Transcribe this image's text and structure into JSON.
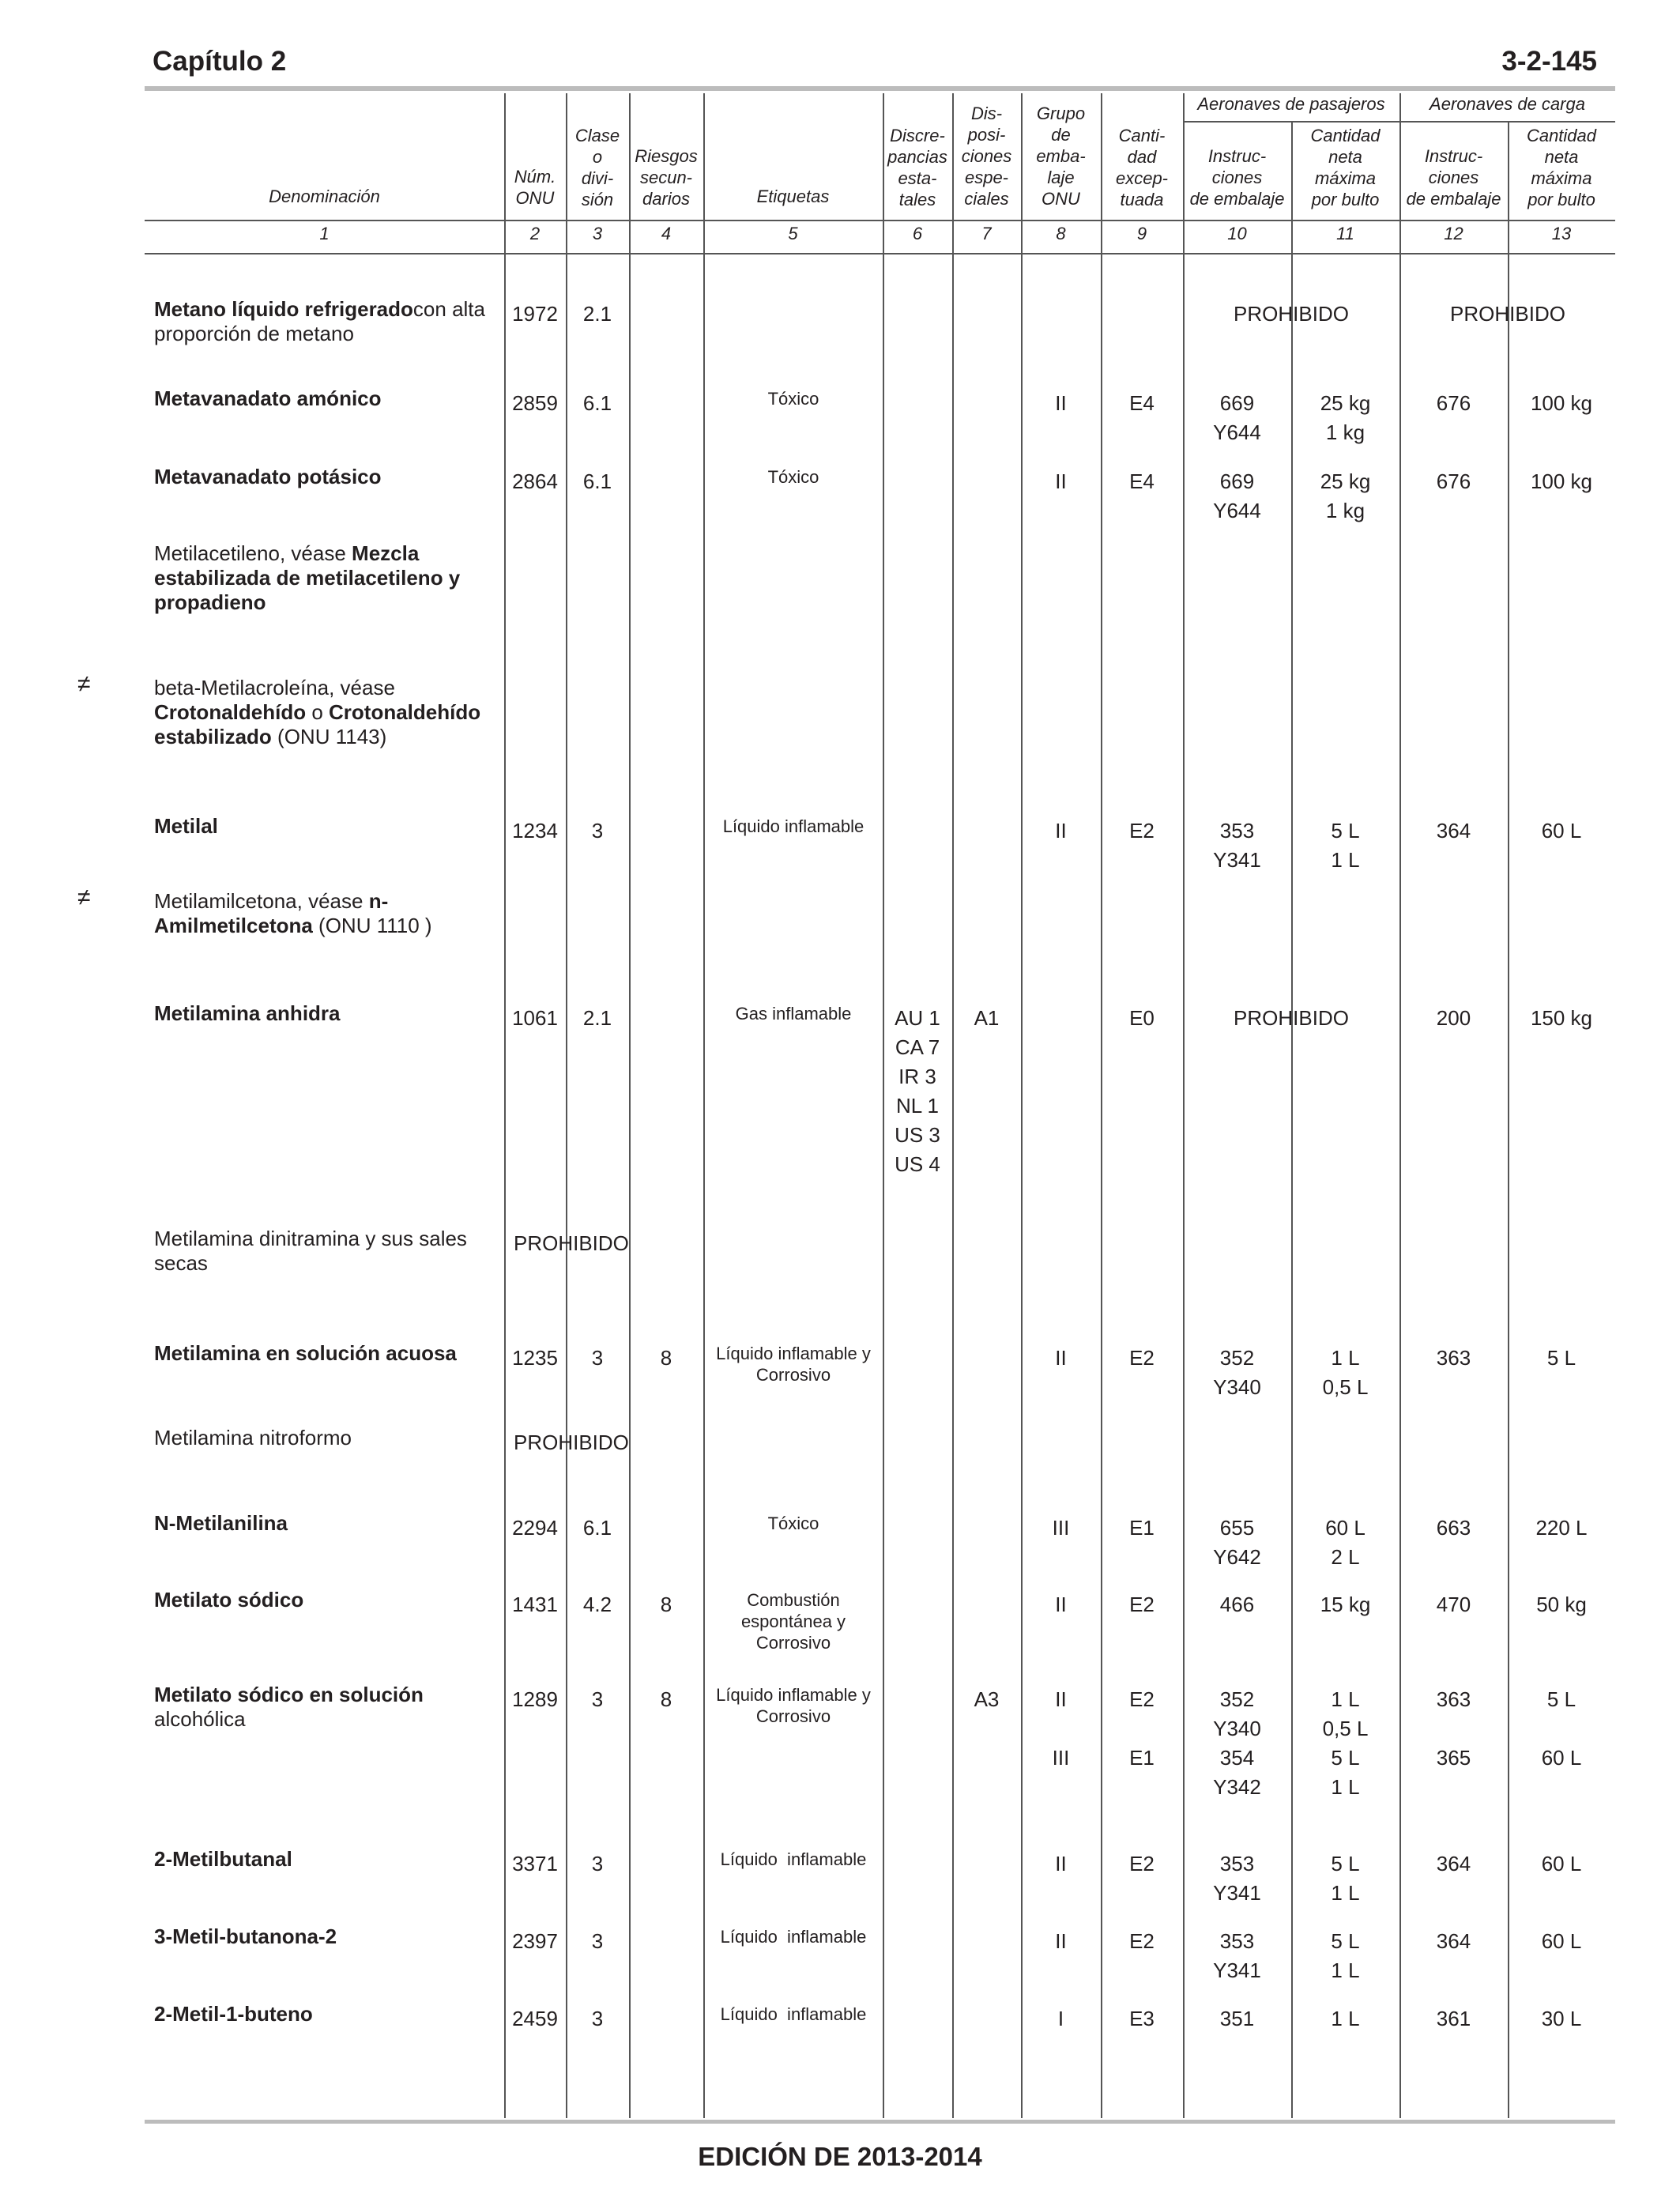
{
  "header": {
    "chapter": "Capítulo 2",
    "page": "3-2-145"
  },
  "columns": {
    "names": [
      "Denominación",
      "Núm.\nONU",
      "Clase\no\ndivi-\nsión",
      "Riesgos\nsecun-\ndarios",
      "Etiquetas",
      "Discre-\npancias\nesta-\ntales",
      "Dis-\nposi-\nciones\nespe-\nciales",
      "Grupo\nde\nemba-\nlaje\nONU",
      "Canti-\ndad\nexcep-\ntuada",
      "Instruc-\nciones\nde embalaje",
      "Cantidad\nneta\nmáxima\npor bulto",
      "Instruc-\nciones\nde embalaje",
      "Cantidad\nneta\nmáxima\npor bulto"
    ],
    "numbers": [
      "1",
      "2",
      "3",
      "4",
      "5",
      "6",
      "7",
      "8",
      "9",
      "10",
      "11",
      "12",
      "13"
    ],
    "group_passenger": "Aeronaves de pasajeros",
    "group_cargo": "Aeronaves de carga"
  },
  "entries": [
    {
      "name_parts": [
        {
          "b": "Metano líquido refrigerado"
        },
        {
          "t": "con alta proporción de metano"
        }
      ],
      "onu": "1972",
      "clase": "2.1",
      "pass_inst": "PROHIBIDO",
      "cargo_inst": "PROHIBIDO"
    },
    {
      "name_parts": [
        {
          "b": "Metavanadato amónico"
        }
      ],
      "onu": "2859",
      "clase": "6.1",
      "label": "Tóxico",
      "grupo": "II",
      "exc": "E4",
      "pass_inst": "669\nY644",
      "pass_qty": "25 kg\n1 kg",
      "cargo_inst": "676",
      "cargo_qty": "100 kg"
    },
    {
      "name_parts": [
        {
          "b": "Metavanadato potásico"
        }
      ],
      "onu": "2864",
      "clase": "6.1",
      "label": "Tóxico",
      "grupo": "II",
      "exc": "E4",
      "pass_inst": "669\nY644",
      "pass_qty": "25 kg\n1 kg",
      "cargo_inst": "676",
      "cargo_qty": "100 kg"
    },
    {
      "name_parts": [
        {
          "t": "Metilacetileno, véase "
        },
        {
          "b": "Mezcla estabilizada de metilacetileno y propadieno"
        }
      ]
    },
    {
      "mark": "≠",
      "name_parts": [
        {
          "t": "beta-Metilacroleína, véase "
        },
        {
          "b": "Crotonaldehído"
        },
        {
          "t": " o "
        },
        {
          "b": "Crotonaldehído estabilizado"
        },
        {
          "t": " (ONU 1143)"
        }
      ]
    },
    {
      "name_parts": [
        {
          "b": "Metilal"
        }
      ],
      "onu": "1234",
      "clase": "3",
      "label": "Líquido inflamable",
      "grupo": "II",
      "exc": "E2",
      "pass_inst": "353\nY341",
      "pass_qty": "5 L\n1 L",
      "cargo_inst": "364",
      "cargo_qty": "60 L"
    },
    {
      "mark": "≠",
      "name_parts": [
        {
          "t": "Metilamilcetona, véase "
        },
        {
          "b": "n-Amilmetilcetona"
        },
        {
          "t": " (ONU 1110 )"
        }
      ]
    },
    {
      "name_parts": [
        {
          "b": "Metilamina anhidra"
        }
      ],
      "onu": "1061",
      "clase": "2.1",
      "label": "Gas inflamable",
      "discrep": "AU 1\nCA 7\nIR 3\nNL 1\nUS 3\nUS 4",
      "disp": "A1",
      "exc": "E0",
      "pass_inst": "PROHIBIDO",
      "cargo_inst": "200",
      "cargo_qty": "150 kg"
    },
    {
      "name_parts": [
        {
          "t": "Metilamina dinitramina y sus sales secas"
        }
      ],
      "forbidden": "PROHIBIDO"
    },
    {
      "name_parts": [
        {
          "b": "Metilamina en solución acuosa"
        }
      ],
      "onu": "1235",
      "clase": "3",
      "riesgo": "8",
      "label": "Líquido inflamable y\nCorrosivo",
      "grupo": "II",
      "exc": "E2",
      "pass_inst": "352\nY340",
      "pass_qty": "1 L\n0,5 L",
      "cargo_inst": "363",
      "cargo_qty": "5 L"
    },
    {
      "name_parts": [
        {
          "t": "Metilamina nitroformo"
        }
      ],
      "forbidden": "PROHIBIDO"
    },
    {
      "name_parts": [
        {
          "b": "N-Metilanilina"
        }
      ],
      "onu": "2294",
      "clase": "6.1",
      "label": "Tóxico",
      "grupo": "III",
      "exc": "E1",
      "pass_inst": "655\nY642",
      "pass_qty": "60 L\n2 L",
      "cargo_inst": "663",
      "cargo_qty": "220 L"
    },
    {
      "name_parts": [
        {
          "b": "Metilato sódico"
        }
      ],
      "onu": "1431",
      "clase": "4.2",
      "riesgo": "8",
      "label": "Combustión\nespontánea y\nCorrosivo",
      "grupo": "II",
      "exc": "E2",
      "pass_inst": "466",
      "pass_qty": "15 kg",
      "cargo_inst": "470",
      "cargo_qty": "50 kg"
    },
    {
      "name_parts": [
        {
          "b": "Metilato sódico en solución"
        },
        {
          "t": " alcohólica"
        }
      ],
      "onu": "1289",
      "clase": "3",
      "riesgo": "8",
      "label": "Líquido inflamable y\nCorrosivo",
      "disp": "A3",
      "grupo": "II\n\nIII",
      "exc": "E2\n\nE1",
      "pass_inst": "352\nY340\n354\nY342",
      "pass_qty": "1 L\n0,5 L\n5 L\n1 L",
      "cargo_inst": "363\n\n365",
      "cargo_qty": "5 L\n\n60 L"
    },
    {
      "name_parts": [
        {
          "b": "2-Metilbutanal"
        }
      ],
      "onu": "3371",
      "clase": "3",
      "label": "Líquido  inflamable",
      "grupo": "II",
      "exc": "E2",
      "pass_inst": "353\nY341",
      "pass_qty": "5 L\n1 L",
      "cargo_inst": "364",
      "cargo_qty": "60 L"
    },
    {
      "name_parts": [
        {
          "b": "3-Metil-butanona-2"
        }
      ],
      "onu": "2397",
      "clase": "3",
      "label": "Líquido  inflamable",
      "grupo": "II",
      "exc": "E2",
      "pass_inst": "353\nY341",
      "pass_qty": "5 L\n1 L",
      "cargo_inst": "364",
      "cargo_qty": "60 L"
    },
    {
      "name_parts": [
        {
          "b": "2-Metil-1-buteno"
        }
      ],
      "onu": "2459",
      "clase": "3",
      "label": "Líquido  inflamable",
      "grupo": "I",
      "exc": "E3",
      "pass_inst": "351",
      "pass_qty": "1 L",
      "cargo_inst": "361",
      "cargo_qty": "30 L"
    }
  ],
  "footer": "EDICIÓN DE 2013-2014"
}
